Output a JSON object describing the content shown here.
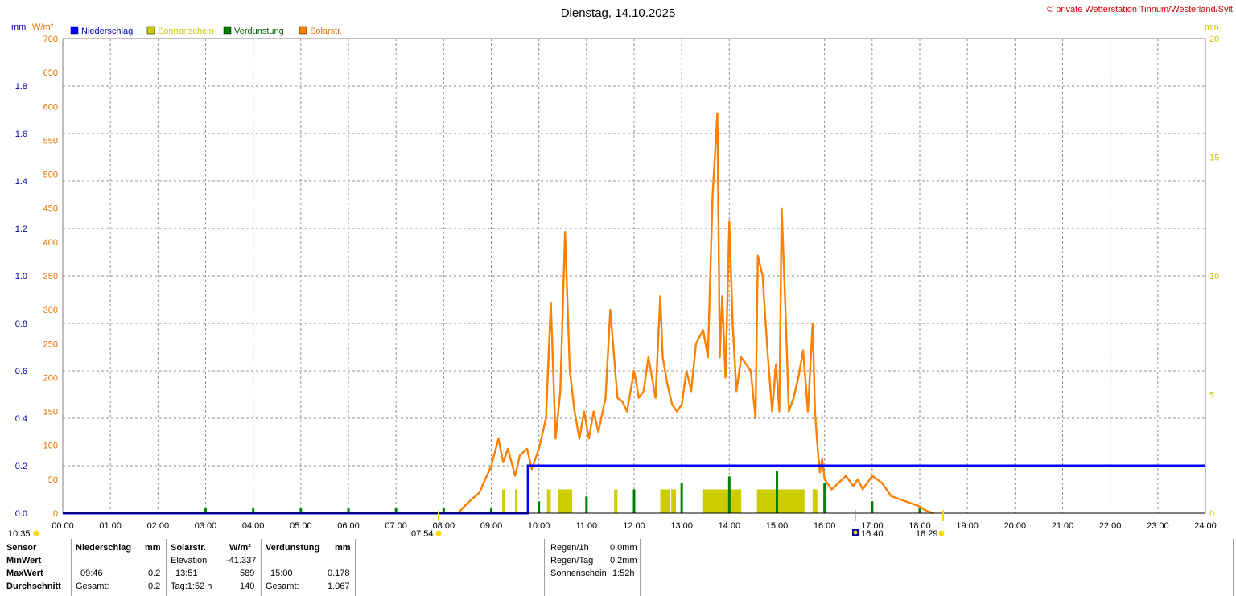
{
  "title": "Dienstag, 14.10.2025",
  "copyright": "© private Wetterstation Tinnum/Westerland/Sylt",
  "legend": [
    {
      "label": "Niederschlag",
      "color": "#0000ff"
    },
    {
      "label": "Sonnenschein",
      "color": "#cccc00"
    },
    {
      "label": "Verdunstung",
      "color": "#008000"
    },
    {
      "label": "Solarstr.",
      "color": "#ff8000"
    }
  ],
  "colors": {
    "rain": "#0000ff",
    "sun": "#cccc00",
    "evap": "#008000",
    "solar": "#ff8000",
    "sun_axis": "#c8c800"
  },
  "markers": {
    "sunrise_icon": "sun-icon",
    "left_time": "10:35",
    "sunrise": "07:54",
    "sunset_icon": "sunset-icon",
    "sunset_time": "16:40",
    "second_time": "18:29"
  },
  "chart_data": {
    "type": "line",
    "xlim": [
      0,
      24
    ],
    "x_ticks": [
      "00:00",
      "01:00",
      "02:00",
      "03:00",
      "04:00",
      "05:00",
      "06:00",
      "07:00",
      "08:00",
      "09:00",
      "10:00",
      "11:00",
      "12:00",
      "13:00",
      "14:00",
      "15:00",
      "16:00",
      "17:00",
      "18:00",
      "19:00",
      "20:00",
      "21:00",
      "22:00",
      "23:00",
      "24:00"
    ],
    "axes": {
      "left_mm": {
        "unit": "mm",
        "lim": [
          0,
          2.0
        ],
        "ticks": [
          "0.0",
          "0.2",
          "0.4",
          "0.6",
          "0.8",
          "1.0",
          "1.2",
          "1.4",
          "1.6",
          "1.8"
        ]
      },
      "left_wm2": {
        "unit": "W/m²",
        "lim": [
          0,
          700
        ],
        "ticks": [
          "0",
          "50",
          "100",
          "150",
          "200",
          "250",
          "300",
          "350",
          "400",
          "450",
          "500",
          "550",
          "600",
          "650",
          "700"
        ]
      },
      "right_min": {
        "unit": "min",
        "lim": [
          0,
          20
        ],
        "ticks": [
          "0",
          "5",
          "10",
          "15",
          "20"
        ]
      }
    },
    "grid": true,
    "series": [
      {
        "name": "Niederschlag",
        "axis": "left_mm",
        "kind": "step",
        "x": [
          0,
          9.7,
          9.77,
          24
        ],
        "y": [
          0,
          0,
          0.2,
          0.2
        ]
      },
      {
        "name": "Solarstr.",
        "axis": "left_wm2",
        "kind": "line",
        "x": [
          8.3,
          8.5,
          8.75,
          9.0,
          9.15,
          9.25,
          9.35,
          9.5,
          9.6,
          9.75,
          9.85,
          10.0,
          10.15,
          10.25,
          10.35,
          10.45,
          10.55,
          10.65,
          10.75,
          10.85,
          10.95,
          11.05,
          11.15,
          11.25,
          11.4,
          11.5,
          11.65,
          11.75,
          11.85,
          12.0,
          12.1,
          12.2,
          12.3,
          12.45,
          12.55,
          12.6,
          12.7,
          12.8,
          12.9,
          13.0,
          13.1,
          13.2,
          13.3,
          13.45,
          13.55,
          13.65,
          13.75,
          13.8,
          13.85,
          13.92,
          14.0,
          14.07,
          14.15,
          14.25,
          14.35,
          14.45,
          14.55,
          14.6,
          14.7,
          14.8,
          14.9,
          14.98,
          15.05,
          15.1,
          15.18,
          15.25,
          15.35,
          15.45,
          15.55,
          15.65,
          15.75,
          15.8,
          15.85,
          15.9,
          15.95,
          16.0,
          16.15,
          16.3,
          16.45,
          16.6,
          16.7,
          16.8,
          17.0,
          17.2,
          17.4,
          17.6,
          17.8,
          18.0,
          18.1,
          18.2,
          18.3
        ],
        "y": [
          0,
          15,
          30,
          70,
          110,
          75,
          95,
          55,
          85,
          95,
          65,
          95,
          140,
          310,
          110,
          180,
          415,
          210,
          150,
          110,
          150,
          110,
          150,
          120,
          170,
          300,
          170,
          165,
          150,
          210,
          170,
          180,
          230,
          170,
          320,
          230,
          190,
          160,
          150,
          160,
          210,
          180,
          250,
          270,
          230,
          470,
          590,
          230,
          320,
          200,
          430,
          280,
          180,
          230,
          220,
          210,
          140,
          380,
          350,
          240,
          150,
          220,
          150,
          450,
          300,
          150,
          170,
          200,
          240,
          150,
          280,
          150,
          100,
          60,
          80,
          50,
          35,
          45,
          55,
          40,
          50,
          35,
          55,
          45,
          25,
          20,
          15,
          10,
          5,
          2,
          0
        ]
      },
      {
        "name": "Sonnenschein",
        "axis": "right_min",
        "kind": "bars",
        "segments": [
          [
            9.23,
            9.28
          ],
          [
            9.5,
            9.55
          ],
          [
            10.17,
            10.25
          ],
          [
            10.4,
            10.7
          ],
          [
            11.58,
            11.65
          ],
          [
            12.55,
            12.75
          ],
          [
            12.78,
            12.88
          ],
          [
            13.45,
            14.25
          ],
          [
            14.58,
            15.58
          ],
          [
            15.75,
            15.85
          ]
        ],
        "height": 1.0
      },
      {
        "name": "Verdunstung",
        "axis": "left_mm",
        "kind": "spikes",
        "x": [
          3,
          4,
          5,
          6,
          7,
          8,
          9,
          10,
          11,
          12,
          13,
          14,
          15,
          16,
          17,
          18
        ],
        "y": [
          0.02,
          0.02,
          0.02,
          0.02,
          0.02,
          0.02,
          0.02,
          0.05,
          0.07,
          0.1,
          0.127,
          0.155,
          0.178,
          0.126,
          0.05,
          0.02
        ]
      }
    ]
  },
  "stats": {
    "headers": {
      "sensor": "Sensor",
      "rain": "Niederschlag",
      "rain_unit": "mm",
      "solar": "Solarstr.",
      "solar_unit": "W/m²",
      "evap": "Verdunstung",
      "evap_unit": "mm"
    },
    "rows": {
      "min": "MinWert",
      "max": "MaxWert",
      "avg": "Durchschnitt"
    },
    "min": {
      "solar_label": "Elevation",
      "solar_value": "-41.337"
    },
    "max": {
      "rain_time": "09:46",
      "rain_value": "0.2",
      "solar_time": "13:51",
      "solar_value": "589",
      "evap_time": "15:00",
      "evap_value": "0.178"
    },
    "avg": {
      "rain_label": "Gesamt:",
      "rain_value": "0.2",
      "solar_label": "Tag:1:52 h",
      "solar_value": "140",
      "evap_label": "Gesamt:",
      "evap_value": "1.067"
    },
    "summary": [
      {
        "label": "Regen/1h",
        "value": "0.0mm"
      },
      {
        "label": "Regen/Tag",
        "value": "0.2mm"
      },
      {
        "label": "Sonnenschein",
        "value": "1:52h"
      }
    ]
  }
}
